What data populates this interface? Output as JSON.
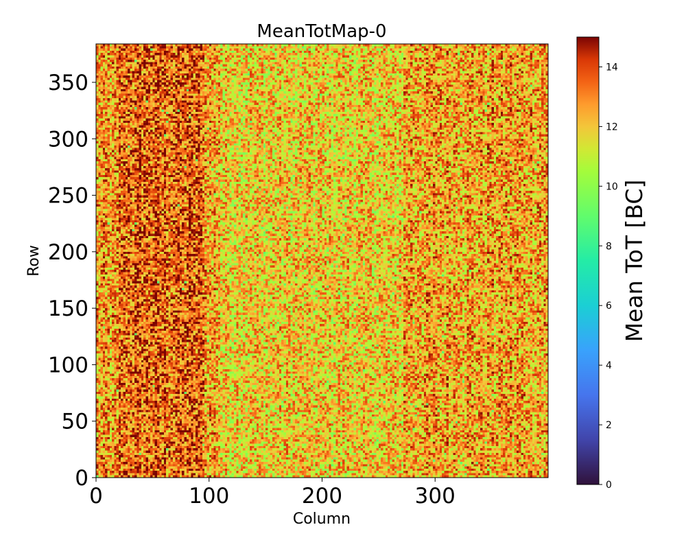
{
  "chart_data": {
    "type": "heatmap",
    "title": "MeanTotMap-0",
    "xlabel": "Column",
    "ylabel": "Row",
    "xlim": [
      0,
      400
    ],
    "ylim": [
      0,
      384
    ],
    "x_ticks": [
      0,
      100,
      200,
      300
    ],
    "y_ticks": [
      0,
      50,
      100,
      150,
      200,
      250,
      300,
      350
    ],
    "colorbar": {
      "label": "Mean ToT [BC]",
      "range": [
        0,
        15
      ],
      "ticks": [
        0,
        2,
        4,
        6,
        8,
        10,
        12,
        14
      ],
      "colormap": "turbo"
    },
    "value_summary": {
      "typical_min": 9,
      "typical_max": 15,
      "dark_band_columns": [
        20,
        95
      ],
      "light_band_columns": [
        110,
        270
      ]
    }
  }
}
